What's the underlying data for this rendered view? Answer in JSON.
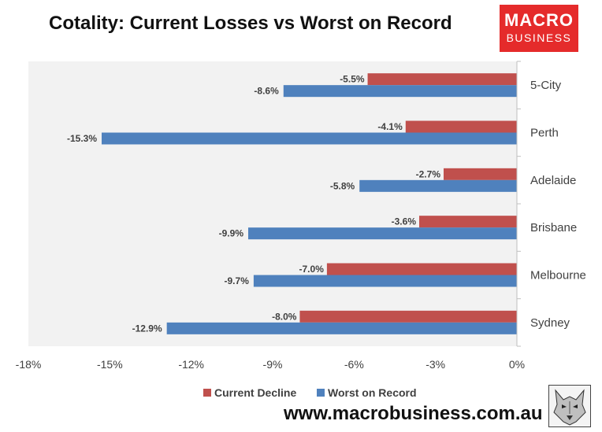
{
  "title": "Cotality: Current Losses vs Worst on Record",
  "logo": {
    "line1": "MACRO",
    "line2": "BUSINESS"
  },
  "website": "www.macrobusiness.com.au",
  "colors": {
    "current": "#c0504d",
    "worst": "#4f81bd",
    "plot_bg": "#f2f2f2"
  },
  "chart_data": {
    "type": "bar",
    "orientation": "horizontal",
    "categories": [
      "5-City",
      "Perth",
      "Adelaide",
      "Brisbane",
      "Melbourne",
      "Sydney"
    ],
    "series": [
      {
        "name": "Current Decline",
        "values": [
          -5.5,
          -4.1,
          -2.7,
          -3.6,
          -7.0,
          -8.0
        ],
        "labels": [
          "-5.5%",
          "-4.1%",
          "-2.7%",
          "-3.6%",
          "-7.0%",
          "-8.0%"
        ]
      },
      {
        "name": "Worst on Record",
        "values": [
          -8.6,
          -15.3,
          -5.8,
          -9.9,
          -9.7,
          -12.9
        ],
        "labels": [
          "-8.6%",
          "-15.3%",
          "-5.8%",
          "-9.9%",
          "-9.7%",
          "-12.9%"
        ]
      }
    ],
    "xlim": [
      -18,
      0
    ],
    "xticks": [
      -18,
      -15,
      -12,
      -9,
      -6,
      -3,
      0
    ],
    "xtick_labels": [
      "-18%",
      "-15%",
      "-12%",
      "-9%",
      "-6%",
      "-3%",
      "0%"
    ],
    "legend": "bottom",
    "grid": false
  }
}
